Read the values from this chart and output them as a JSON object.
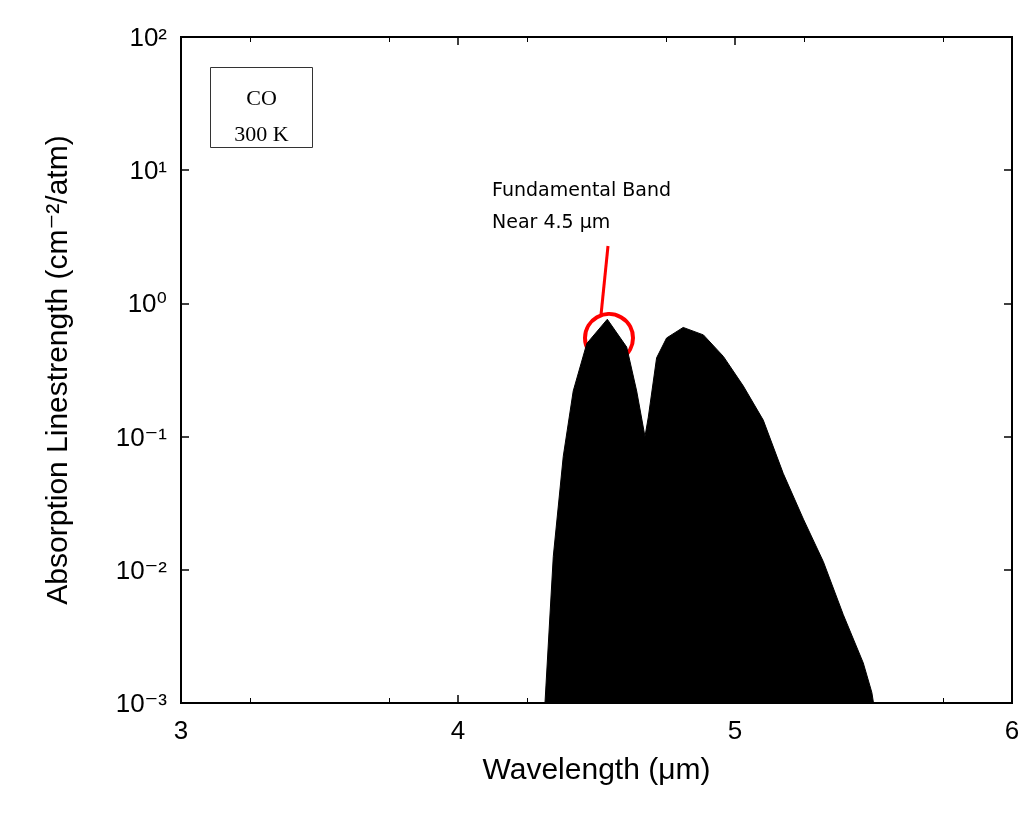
{
  "chart_data": {
    "type": "area",
    "xlabel": "Wavelength (μm)",
    "ylabel": "Absorption Linestrength (cm⁻²/atm)",
    "x": [
      4.314,
      4.344,
      4.38,
      4.416,
      4.465,
      4.539,
      4.609,
      4.645,
      4.675,
      4.687,
      4.717,
      4.753,
      4.813,
      4.886,
      4.958,
      5.03,
      5.102,
      5.174,
      5.247,
      5.319,
      5.391,
      5.463,
      5.494,
      5.5
    ],
    "series": [
      {
        "color": "#000000",
        "values": [
          0.001,
          0.0126,
          0.071,
          0.22,
          0.5,
          0.76,
          0.47,
          0.22,
          0.1,
          0.14,
          0.39,
          0.55,
          0.66,
          0.58,
          0.4,
          0.24,
          0.133,
          0.053,
          0.024,
          0.0115,
          0.0046,
          0.002,
          0.0012,
          0.001
        ]
      }
    ],
    "xlim": [
      3,
      6
    ],
    "xticks": [
      3,
      4,
      5,
      6
    ],
    "log": "y",
    "ylim": [
      0.001,
      100
    ],
    "yticks": [
      {
        "value": 0.001,
        "label": "10⁻³"
      },
      {
        "value": 0.01,
        "label": "10⁻²"
      },
      {
        "value": 0.1,
        "label": "10⁻¹"
      },
      {
        "value": 1,
        "label": "10⁰"
      },
      {
        "value": 10,
        "label": "10¹"
      },
      {
        "value": 100,
        "label": "10²"
      }
    ],
    "annotations": [
      "CO\n300 K",
      "Fundamental Band\nNear 4.5 μm"
    ],
    "grid": false
  }
}
